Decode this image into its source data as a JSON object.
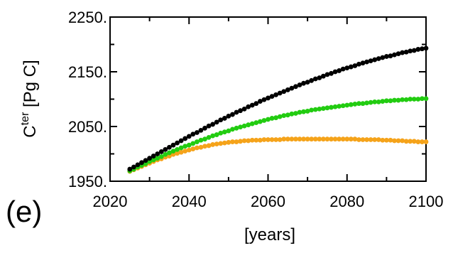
{
  "chart_data": {
    "type": "scatter",
    "panel_label": "(e)",
    "xlabel": "[years]",
    "ylabel": {
      "base": "C",
      "superscript": "ter",
      "rest": " [Pg C]"
    },
    "xlim": [
      2020,
      2100
    ],
    "ylim": [
      1950,
      2250
    ],
    "x_ticks": [
      {
        "value": 2020,
        "label": "2020"
      },
      {
        "value": 2040,
        "label": "2040"
      },
      {
        "value": 2060,
        "label": "2060"
      },
      {
        "value": 2080,
        "label": "2080"
      },
      {
        "value": 2100,
        "label": "2100"
      }
    ],
    "y_ticks": [
      {
        "value": 1950,
        "label": "1950."
      },
      {
        "value": 2050,
        "label": "2050."
      },
      {
        "value": 2150,
        "label": "2150."
      },
      {
        "value": 2250,
        "label": "2250."
      }
    ],
    "grid": false,
    "legend": "none",
    "series": [
      {
        "color": "#f5a31a",
        "x_start": 2025,
        "x_step": 1,
        "values": [
          1968,
          1971,
          1974,
          1977,
          1980,
          1983,
          1986,
          1989,
          1991,
          1994,
          1996,
          1999,
          2001,
          2003,
          2005,
          2007,
          2009,
          2011,
          2012,
          2014,
          2015,
          2017,
          2018,
          2019,
          2020,
          2021,
          2022,
          2022,
          2023,
          2024,
          2024,
          2025,
          2025,
          2025,
          2026,
          2026,
          2026,
          2026,
          2026,
          2027,
          2027,
          2027,
          2027,
          2027,
          2027,
          2027,
          2027,
          2027,
          2027,
          2027,
          2027,
          2027,
          2027,
          2027,
          2027,
          2027,
          2027,
          2027,
          2026,
          2026,
          2026,
          2026,
          2026,
          2026,
          2025,
          2025,
          2025,
          2024,
          2024,
          2024,
          2023,
          2023,
          2023,
          2022,
          2022,
          2022
        ]
      },
      {
        "color": "#22cc11",
        "x_start": 2025,
        "x_step": 1,
        "values": [
          1969,
          1972,
          1976,
          1979,
          1982,
          1986,
          1989,
          1992,
          1995,
          1999,
          2002,
          2005,
          2008,
          2011,
          2014,
          2016,
          2019,
          2022,
          2025,
          2027,
          2030,
          2033,
          2035,
          2038,
          2040,
          2042,
          2045,
          2047,
          2049,
          2051,
          2053,
          2055,
          2057,
          2059,
          2061,
          2063,
          2065,
          2066,
          2068,
          2070,
          2071,
          2073,
          2074,
          2076,
          2077,
          2078,
          2080,
          2081,
          2082,
          2083,
          2084,
          2085,
          2086,
          2087,
          2088,
          2089,
          2090,
          2091,
          2092,
          2092,
          2093,
          2094,
          2095,
          2095,
          2096,
          2097,
          2097,
          2098,
          2098,
          2099,
          2099,
          2100,
          2100,
          2100,
          2101,
          2101
        ]
      },
      {
        "color": "#000000",
        "x_start": 2025,
        "x_step": 1,
        "values": [
          1972,
          1976,
          1980,
          1984,
          1988,
          1992,
          1996,
          2000,
          2004,
          2008,
          2012,
          2016,
          2020,
          2024,
          2028,
          2032,
          2036,
          2039,
          2043,
          2047,
          2051,
          2054,
          2058,
          2062,
          2065,
          2069,
          2072,
          2076,
          2079,
          2082,
          2086,
          2089,
          2092,
          2096,
          2099,
          2102,
          2105,
          2108,
          2111,
          2114,
          2117,
          2120,
          2123,
          2126,
          2129,
          2131,
          2134,
          2137,
          2139,
          2142,
          2145,
          2147,
          2150,
          2152,
          2155,
          2157,
          2159,
          2161,
          2164,
          2166,
          2168,
          2170,
          2172,
          2174,
          2176,
          2178,
          2179,
          2181,
          2183,
          2185,
          2186,
          2188,
          2189,
          2191,
          2192,
          2193
        ]
      }
    ]
  }
}
